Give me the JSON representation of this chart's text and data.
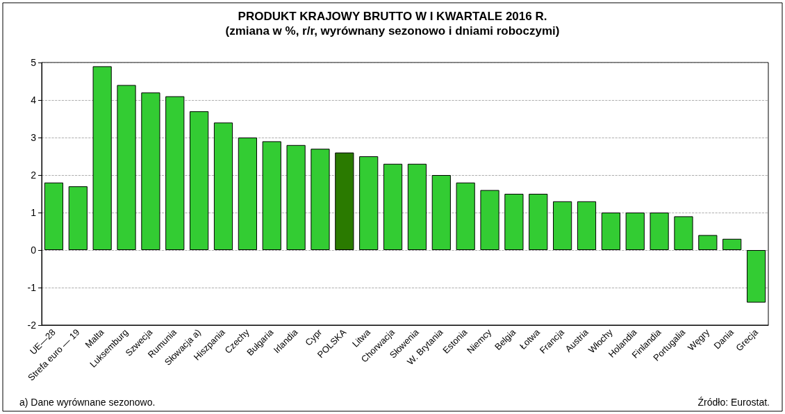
{
  "chart_data": {
    "type": "bar",
    "title": "PRODUKT KRAJOWY BRUTTO W I KWARTALE 2016 R.",
    "subtitle": "(zmiana w %, r/r, wyrównany sezonowo i dniami roboczymi)",
    "categories": [
      "UE—28",
      "Strefa euro — 19",
      "Malta",
      "Luksemburg",
      "Szwecja",
      "Rumunia",
      "Słowacja a)",
      "Hiszpania",
      "Czechy",
      "Bułgaria",
      "Irlandia",
      "Cypr",
      "POLSKA",
      "Litwa",
      "Chorwacja",
      "Słowenia",
      "W. Brytania",
      "Estonia",
      "Niemcy",
      "Belgia",
      "Łotwa",
      "Francja",
      "Austria",
      "Włochy",
      "Holandia",
      "Finlandia",
      "Portugalia",
      "Węgry",
      "Dania",
      "Grecja"
    ],
    "values": [
      1.8,
      1.7,
      4.9,
      4.4,
      4.2,
      4.1,
      3.7,
      3.4,
      3.0,
      2.9,
      2.8,
      2.7,
      2.6,
      2.5,
      2.3,
      2.3,
      2.0,
      1.8,
      1.6,
      1.5,
      1.5,
      1.3,
      1.3,
      1.0,
      1.0,
      1.0,
      0.9,
      0.4,
      0.3,
      -1.4
    ],
    "colors": [
      "#33cc33",
      "#33cc33",
      "#33cc33",
      "#33cc33",
      "#33cc33",
      "#33cc33",
      "#33cc33",
      "#33cc33",
      "#33cc33",
      "#33cc33",
      "#33cc33",
      "#33cc33",
      "#2a7a00",
      "#33cc33",
      "#33cc33",
      "#33cc33",
      "#33cc33",
      "#33cc33",
      "#33cc33",
      "#33cc33",
      "#33cc33",
      "#33cc33",
      "#33cc33",
      "#33cc33",
      "#33cc33",
      "#33cc33",
      "#33cc33",
      "#33cc33",
      "#33cc33",
      "#33cc33"
    ],
    "ylim": [
      -2,
      5
    ],
    "yticks": [
      -2,
      -1,
      0,
      1,
      2,
      3,
      4,
      5
    ],
    "grid": "y",
    "annotations": [
      "a) Dane wyrównane sezonowo.",
      "Źródło: Eurostat."
    ]
  }
}
